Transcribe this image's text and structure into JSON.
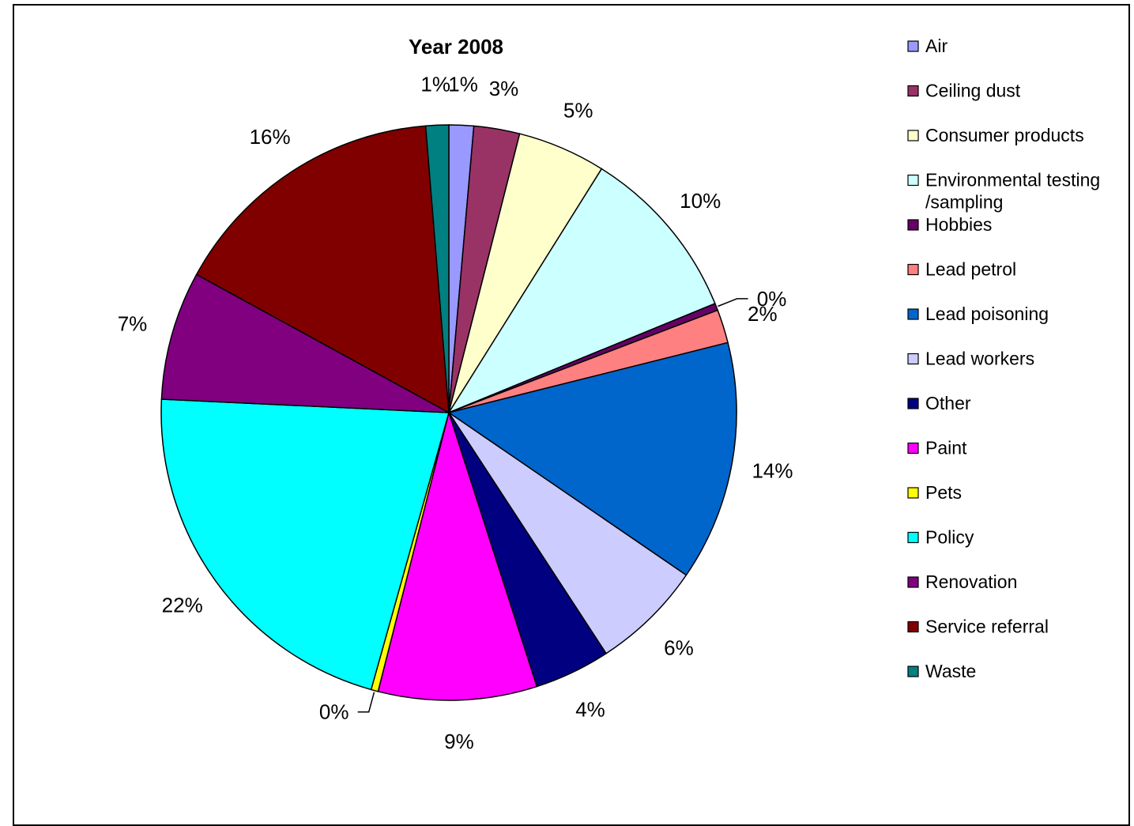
{
  "chart_data": {
    "type": "pie",
    "title": "Year 2008",
    "categories": [
      "Air",
      "Ceiling dust",
      "Consumer products",
      "Environmental testing /sampling",
      "Hobbies",
      "Lead petrol",
      "Lead poisoning",
      "Lead workers",
      "Other",
      "Paint",
      "Pets",
      "Policy",
      "Renovation",
      "Service referral",
      "Waste"
    ],
    "legend_lines": [
      [
        "Air"
      ],
      [
        "Ceiling dust"
      ],
      [
        "Consumer products"
      ],
      [
        "Environmental testing",
        "/sampling"
      ],
      [
        "Hobbies"
      ],
      [
        "Lead petrol"
      ],
      [
        "Lead poisoning"
      ],
      [
        "Lead workers"
      ],
      [
        "Other"
      ],
      [
        "Paint"
      ],
      [
        "Pets"
      ],
      [
        "Policy"
      ],
      [
        "Renovation"
      ],
      [
        "Service referral"
      ],
      [
        "Waste"
      ]
    ],
    "values": [
      1.4,
      2.6,
      5.0,
      10.0,
      0.4,
      1.9,
      13.6,
      6.3,
      4.3,
      9.0,
      0.4,
      21.6,
      7.3,
      15.9,
      1.3
    ],
    "labels": [
      "1%",
      "3%",
      "5%",
      "10%",
      "0%",
      "2%",
      "14%",
      "6%",
      "4%",
      "9%",
      "0%",
      "22%",
      "7%",
      "16%",
      "1%"
    ],
    "colors": [
      "#9999FF",
      "#993366",
      "#FFFFCC",
      "#CCFFFF",
      "#660066",
      "#FF8080",
      "#0066CC",
      "#CCCCFF",
      "#000080",
      "#FF00FF",
      "#FFFF00",
      "#00FFFF",
      "#800080",
      "#800000",
      "#008080"
    ],
    "legend_position": "right",
    "start_angle_deg": 0,
    "direction": "clockwise"
  }
}
